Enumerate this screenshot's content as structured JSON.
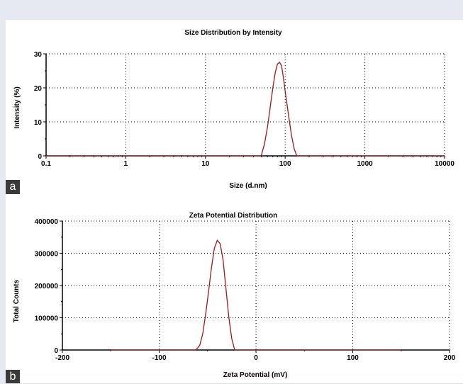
{
  "chart_data": [
    {
      "type": "line",
      "panel_label": "a",
      "title": "Size Distribution by Intensity",
      "xlabel": "Size (d.nm)",
      "ylabel": "Intensity (%)",
      "xscale": "log",
      "xlim": [
        0.1,
        10000
      ],
      "ylim": [
        0,
        30
      ],
      "xticks": [
        0.1,
        1,
        10,
        100,
        1000,
        10000
      ],
      "xtick_labels": [
        "0.1",
        "1",
        "10",
        "100",
        "1000",
        "10000"
      ],
      "yticks": [
        0,
        10,
        20,
        30
      ],
      "ytick_labels": [
        "0",
        "10",
        "20",
        "30"
      ],
      "grid": true,
      "series": [
        {
          "color": "#a01818",
          "x": [
            0.1,
            50,
            55,
            60,
            65,
            70,
            75,
            80,
            85,
            90,
            95,
            100,
            110,
            120,
            130,
            140,
            10000
          ],
          "y": [
            0,
            0,
            3.5,
            8.5,
            14.5,
            20,
            24.5,
            27,
            27.5,
            26.5,
            23,
            19,
            12,
            6,
            2,
            0,
            0
          ]
        }
      ]
    },
    {
      "type": "line",
      "panel_label": "b",
      "title": "Zeta Potential Distribution",
      "xlabel": "Zeta Potential (mV)",
      "ylabel": "Total Counts",
      "xlim": [
        -200,
        200
      ],
      "ylim": [
        0,
        400000
      ],
      "xticks": [
        -200,
        -100,
        0,
        100,
        200
      ],
      "xtick_labels": [
        "-200",
        "-100",
        "0",
        "100",
        "200"
      ],
      "yticks": [
        0,
        100000,
        200000,
        300000,
        400000
      ],
      "ytick_labels": [
        "0",
        "100000",
        "200000",
        "300000",
        "400000"
      ],
      "grid": true,
      "series": [
        {
          "color": "#a01818",
          "x": [
            -150,
            -62,
            -58,
            -55,
            -52,
            -49,
            -46,
            -43,
            -40,
            -37,
            -34,
            -31,
            -28,
            -25,
            -22,
            150
          ],
          "y": [
            0,
            0,
            15000,
            50000,
            110000,
            180000,
            255000,
            315000,
            340000,
            330000,
            280000,
            190000,
            100000,
            35000,
            0,
            0
          ]
        }
      ]
    }
  ]
}
